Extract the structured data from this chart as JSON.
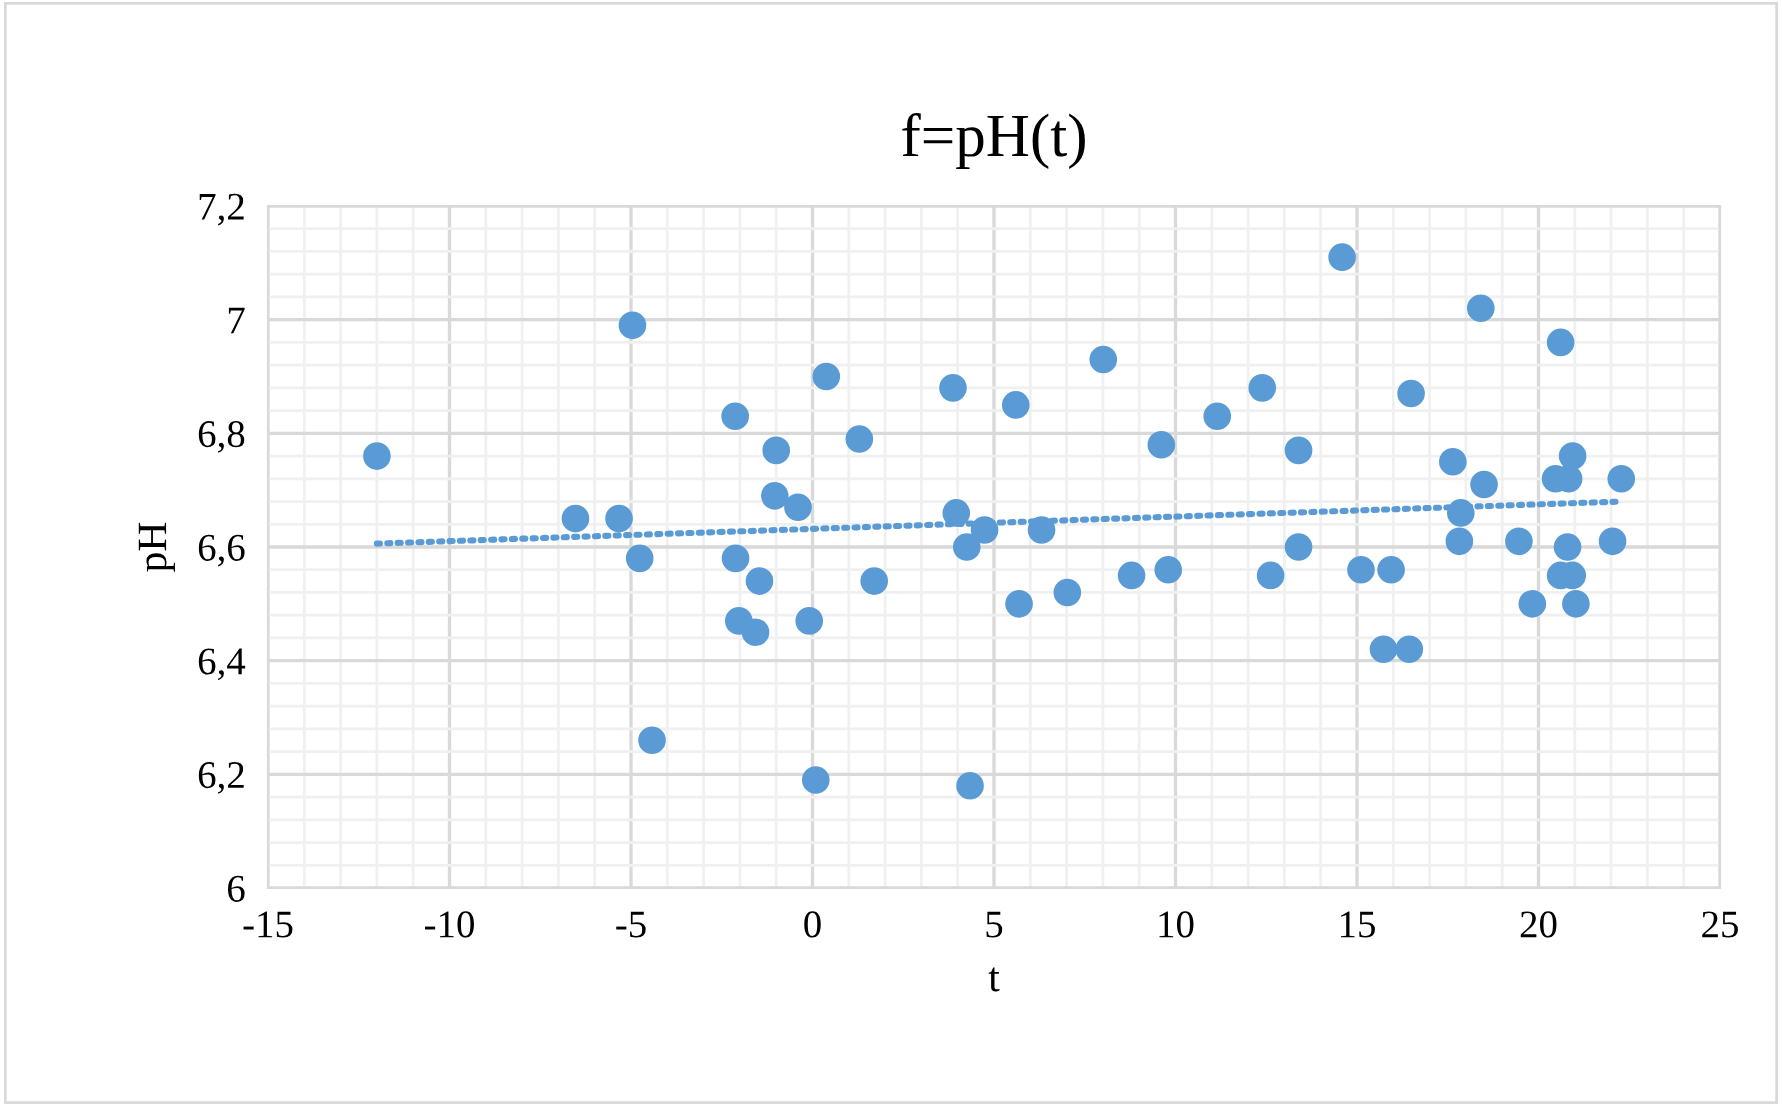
{
  "chart_data": {
    "type": "scatter",
    "title": "f=pH(t)",
    "xlabel": "t",
    "ylabel": "pH",
    "xlim": [
      -15,
      25
    ],
    "xticks": [
      -15,
      -10,
      -5,
      0,
      5,
      10,
      15,
      20,
      25
    ],
    "ylim": [
      6,
      7.2
    ],
    "yticks": [
      6,
      {
        "value": 6.2,
        "label": "6,2"
      },
      {
        "value": 6.4,
        "label": "6,4"
      },
      {
        "value": 6.6,
        "label": "6,6"
      },
      {
        "value": 6.8,
        "label": "6,8"
      },
      7,
      {
        "value": 7.2,
        "label": "7,2"
      }
    ],
    "grid": true,
    "legend": false,
    "marker": "circle",
    "series": [
      {
        "color": "#5b9bd5",
        "x": [
          -12.0,
          -4.96,
          0.38,
          3.87,
          -2.13,
          1.29,
          -1.0,
          -1.04,
          -0.4,
          3.96,
          4.74,
          4.25,
          -6.53,
          -5.33,
          -4.76,
          -2.12,
          -1.46,
          1.7,
          -2.03,
          -1.57,
          -0.09,
          -4.42,
          0.09,
          4.34,
          14.59,
          18.41,
          20.61,
          8.01,
          5.6,
          12.39,
          16.49,
          11.15,
          9.61,
          13.39,
          20.94,
          17.64,
          20.47,
          20.83,
          22.28,
          18.5,
          17.86,
          6.31,
          17.82,
          19.46,
          20.8,
          22.04,
          13.39,
          9.8,
          8.79,
          12.62,
          15.11,
          15.94,
          20.61,
          20.93,
          5.69,
          7.02,
          19.83,
          21.03,
          15.73,
          16.44
        ],
        "values": [
          6.76,
          6.99,
          6.9,
          6.88,
          6.83,
          6.79,
          6.77,
          6.69,
          6.67,
          6.66,
          6.63,
          6.6,
          6.65,
          6.65,
          6.58,
          6.58,
          6.54,
          6.54,
          6.47,
          6.45,
          6.47,
          6.26,
          6.19,
          6.18,
          7.11,
          7.02,
          6.96,
          6.93,
          6.85,
          6.88,
          6.87,
          6.83,
          6.78,
          6.77,
          6.76,
          6.75,
          6.72,
          6.72,
          6.72,
          6.71,
          6.66,
          6.63,
          6.61,
          6.61,
          6.6,
          6.61,
          6.6,
          6.56,
          6.55,
          6.55,
          6.56,
          6.56,
          6.55,
          6.55,
          6.5,
          6.52,
          6.5,
          6.5,
          6.42,
          6.42
        ]
      },
      {
        "type": "line",
        "color": "#5b9bd5",
        "line_style": "dotted",
        "marker": "none",
        "x": [
          -12.0,
          22.28
        ],
        "values": [
          6.606,
          6.68
        ]
      }
    ]
  }
}
